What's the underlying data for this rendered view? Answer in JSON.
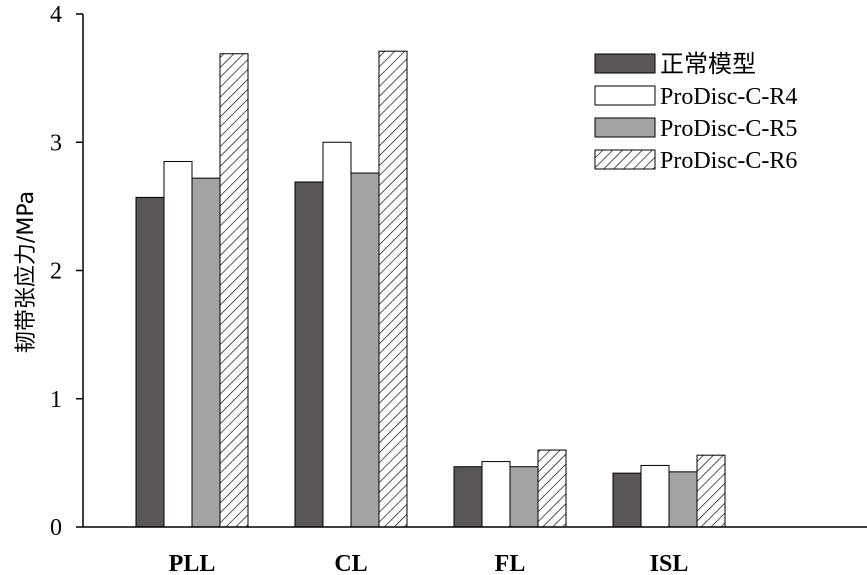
{
  "chart_data": {
    "type": "bar",
    "title": "",
    "xlabel": "",
    "ylabel": "韧带张应力/MPa",
    "ylim": [
      0,
      4
    ],
    "yticks": [
      0,
      1,
      2,
      3,
      4
    ],
    "grid": false,
    "legend_position": "top-right",
    "categories": [
      "PLL",
      "CL",
      "FL",
      "ISL"
    ],
    "series": [
      {
        "name": "正常模型",
        "values": [
          2.57,
          2.69,
          0.47,
          0.42
        ],
        "fill": "#5a5557",
        "pattern": "solid"
      },
      {
        "name": "ProDisc-C-R4",
        "values": [
          2.85,
          3.0,
          0.51,
          0.48
        ],
        "fill": "#ffffff",
        "pattern": "solid"
      },
      {
        "name": "ProDisc-C-R5",
        "values": [
          2.72,
          2.76,
          0.47,
          0.43
        ],
        "fill": "#a3a3a3",
        "pattern": "solid"
      },
      {
        "name": "ProDisc-C-R6",
        "values": [
          3.69,
          3.71,
          0.6,
          0.56
        ],
        "fill": "#ffffff",
        "pattern": "hatch"
      }
    ]
  }
}
